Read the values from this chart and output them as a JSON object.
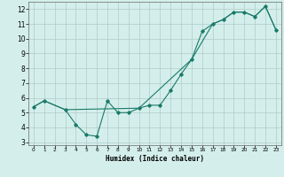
{
  "xlabel": "Humidex (Indice chaleur)",
  "xlim": [
    -0.5,
    23.5
  ],
  "ylim": [
    2.8,
    12.5
  ],
  "yticks": [
    3,
    4,
    5,
    6,
    7,
    8,
    9,
    10,
    11,
    12
  ],
  "xticks": [
    0,
    1,
    2,
    3,
    4,
    5,
    6,
    7,
    8,
    9,
    10,
    11,
    12,
    13,
    14,
    15,
    16,
    17,
    18,
    19,
    20,
    21,
    22,
    23
  ],
  "bg_color": "#d4efeb",
  "grid_color": "#b0ccc8",
  "line_color": "#1a7a6a",
  "series1_x": [
    0,
    1,
    3,
    4,
    5,
    6,
    7,
    8,
    9,
    10,
    11,
    12,
    13,
    14,
    15,
    16,
    17,
    18,
    19,
    20,
    21,
    22,
    23
  ],
  "series1_y": [
    5.4,
    5.8,
    5.2,
    4.2,
    3.5,
    3.4,
    5.8,
    5.0,
    5.0,
    5.3,
    5.5,
    5.5,
    6.5,
    7.6,
    8.6,
    10.5,
    11.0,
    11.3,
    11.8,
    11.8,
    11.5,
    12.2,
    10.6
  ],
  "series2_x": [
    0,
    1,
    3,
    10,
    15,
    17,
    18,
    19,
    20,
    21,
    22,
    23
  ],
  "series2_y": [
    5.4,
    5.8,
    5.2,
    5.3,
    8.6,
    11.0,
    11.3,
    11.8,
    11.8,
    11.5,
    12.2,
    10.6
  ]
}
